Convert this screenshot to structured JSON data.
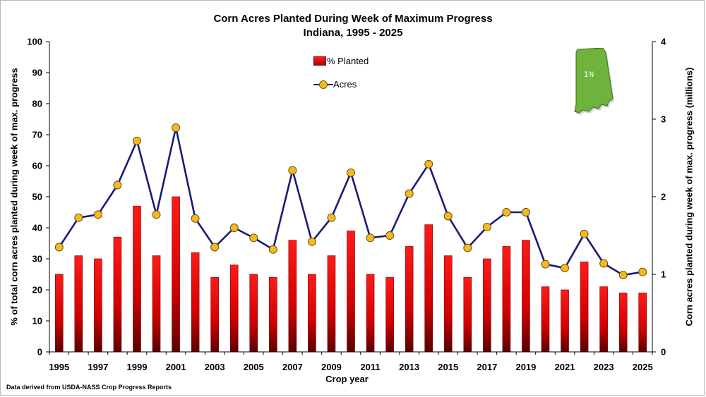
{
  "chart_data": {
    "type": "bar",
    "title": "Corn Acres Planted During Week of Maximum Progress",
    "subtitle": "Indiana, 1995 - 2025",
    "xlabel": "Crop year",
    "ylabel": "% of total corn acres planted during week of max. progress",
    "y2label": "Corn acres planted during week of max. progress (millions)",
    "categories": [
      1995,
      1996,
      1997,
      1998,
      1999,
      2000,
      2001,
      2002,
      2003,
      2004,
      2005,
      2006,
      2007,
      2008,
      2009,
      2010,
      2011,
      2012,
      2013,
      2014,
      2015,
      2016,
      2017,
      2018,
      2019,
      2020,
      2021,
      2022,
      2023,
      2024,
      2025
    ],
    "x_tick_labels": [
      "1995",
      "1997",
      "1999",
      "2001",
      "2003",
      "2005",
      "2007",
      "2009",
      "2011",
      "2013",
      "2015",
      "2017",
      "2019",
      "2021",
      "2023",
      "2025"
    ],
    "ylim": [
      0,
      100
    ],
    "y_ticks": [
      0,
      10,
      20,
      30,
      40,
      50,
      60,
      70,
      80,
      90,
      100
    ],
    "y2lim": [
      0,
      4
    ],
    "y2_ticks": [
      0,
      1,
      2,
      3,
      4
    ],
    "grid": false,
    "legend_position": "top-center",
    "series": [
      {
        "name": "% Planted",
        "type": "bar",
        "axis": "left",
        "color": "#e00000",
        "values": [
          25,
          31,
          30,
          37,
          47,
          31,
          50,
          32,
          24,
          28,
          25,
          24,
          36,
          25,
          31,
          39,
          25,
          24,
          34,
          41,
          31,
          24,
          30,
          34,
          36,
          21,
          20,
          29,
          21,
          19,
          19
        ]
      },
      {
        "name": "Acres",
        "type": "line",
        "axis": "right",
        "line_color": "#1a1a7a",
        "marker_color": "#f6b820",
        "values": [
          1.35,
          1.73,
          1.77,
          2.15,
          2.72,
          1.77,
          2.89,
          1.72,
          1.35,
          1.6,
          1.47,
          1.32,
          2.34,
          1.42,
          1.73,
          2.31,
          1.47,
          1.5,
          2.04,
          2.42,
          1.75,
          1.34,
          1.61,
          1.8,
          1.8,
          1.13,
          1.08,
          1.52,
          1.14,
          0.99,
          1.03
        ]
      }
    ],
    "source_note": "Data derived from USDA-NASS Crop Progress Reports",
    "map_label": "IN",
    "colors": {
      "map_fill": "#6fb23c",
      "map_stroke": "#3d6e1c"
    }
  }
}
